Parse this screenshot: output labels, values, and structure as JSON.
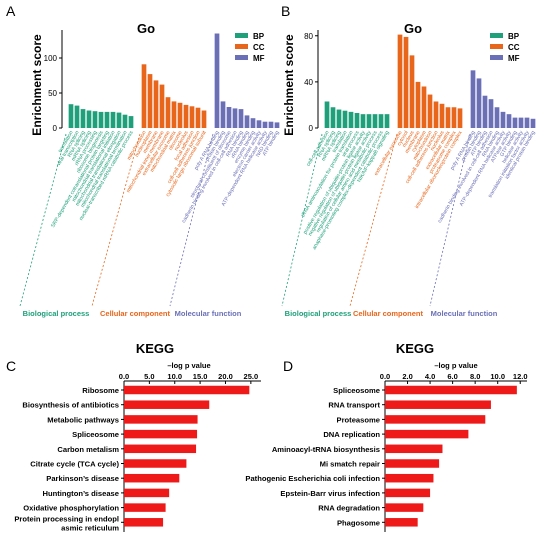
{
  "colors": {
    "BP": "#1fa07a",
    "CC": "#e8661c",
    "MF": "#6b70b6",
    "KEGG": "#ee1a1a"
  },
  "chart_data": [
    {
      "panel": "A",
      "type": "bar",
      "title": "Go",
      "ylabel": "Enrichment score",
      "ylim": [
        0,
        140
      ],
      "yticks": [
        0,
        50,
        100
      ],
      "legend": [
        "BP",
        "CC",
        "MF"
      ],
      "legend_position": "top-right",
      "groups": [
        {
          "name": "Biological process",
          "key": "BP",
          "categories": [
            "translation",
            "viral transcription",
            "RNA splicing",
            "mRNA splicing",
            "rRNA processing",
            "ribosome biogenesis",
            "SRP-dependent cotranslational protein targeting",
            "mitochondrial translational initiation",
            "mitochondrial translational elongation",
            "mitochondrial translational termination",
            "nuclear-transcribed mRNA catabolic process"
          ],
          "values": [
            34,
            32,
            27,
            25,
            24,
            23,
            23,
            23,
            22,
            19,
            17
          ]
        },
        {
          "name": "Cellular component",
          "key": "CC",
          "categories": [
            "mitochondrion",
            "nucleoplasm",
            "membrane",
            "mitochondrial inner membrane",
            "extracellular exosome",
            "mitochondrial matrix",
            "ribosome",
            "nucleolus",
            "focal adhesion",
            "cell-cell adherens junction",
            "cytosolic large ribosomal subunit"
          ],
          "values": [
            91,
            77,
            68,
            62,
            44,
            38,
            36,
            33,
            31,
            29,
            25
          ]
        },
        {
          "name": "Molecular function",
          "key": "MF",
          "categories": [
            "poly A RNA binding",
            "protein binding",
            "structural constituent of ribosome",
            "cadherin binding involved in cell-cell adhesion",
            "RNA binding",
            "rRNA binding",
            "enzyme binding",
            "electron carrier activity",
            "ATP-dependent RNA helicase activity",
            "NAD binding",
            "ATP binding"
          ],
          "values": [
            135,
            38,
            30,
            28,
            27,
            18,
            14,
            11,
            9,
            9,
            8
          ]
        }
      ]
    },
    {
      "panel": "B",
      "type": "bar",
      "title": "Go",
      "ylabel": "Enrichment score",
      "ylim": [
        0,
        85
      ],
      "yticks": [
        0,
        40,
        80
      ],
      "legend": [
        "BP",
        "CC",
        "MF"
      ],
      "legend_position": "top-right",
      "groups": [
        {
          "name": "Biological process",
          "key": "BP",
          "categories": [
            "cell-cell adhesion",
            "RNA splicing",
            "mRNA splicing",
            "translation",
            "tRNA aminoacylation for protein translation",
            "viral process",
            "positive regulation of ubiquitin-protein ligase activity",
            "negative regulation of ubiquitin-protein ligase activity",
            "regulation of cellular amino acid metabolic process",
            "anaphase-promoting complex-dependent catabolic process",
            "NIK/NF-kappaB signaling"
          ],
          "values": [
            23,
            18,
            16,
            15,
            14,
            13,
            12,
            12,
            12,
            12,
            12
          ]
        },
        {
          "name": "Cellular component",
          "key": "CC",
          "categories": [
            "extracellular exosome",
            "cytosol",
            "nucleus",
            "membrane",
            "cytoplasm",
            "mitochondrion",
            "cell-cell adherens junction",
            "nucleolus",
            "extracellular matrix",
            "proteasome complex",
            "intracellular ribonucleoprotein complex"
          ],
          "values": [
            81,
            79,
            63,
            40,
            36,
            29,
            23,
            21,
            18,
            18,
            17
          ]
        },
        {
          "name": "Molecular function",
          "key": "MF",
          "categories": [
            "poly A RNA binding",
            "protein binding",
            "ATP binding",
            "cadherin binding involved in cell-cell adhesion",
            "RNA binding",
            "ATP-dependent RNA helicase activity",
            "ATPase activity",
            "GTP binding",
            "helicase activity",
            "translation initiation factor activity",
            "identical protein binding"
          ],
          "values": [
            50,
            43,
            28,
            25,
            18,
            14,
            12,
            9,
            9,
            9,
            8
          ]
        }
      ]
    },
    {
      "panel": "C",
      "type": "bar",
      "orientation": "horizontal",
      "title": "KEGG",
      "xlabel": "–log p value",
      "xlim": [
        0,
        27
      ],
      "xticks": [
        0.0,
        5.0,
        10.0,
        15.0,
        20.0,
        25.0
      ],
      "xtick_labels": [
        "0.0",
        "5.0",
        "10.0",
        "15.0",
        "20.0",
        "25.0"
      ],
      "categories": [
        "Ribosome",
        "Biosynthesis of antibiotics",
        "Metabolic pathways",
        "Spliceosome",
        "Carbon metalism",
        "Citrate cycle (TCA cycle)",
        "Parkinson’s disease",
        "Huntington’s disease",
        "Oxidative phosphorylation",
        "Protein processing in endopl asmic reticulum"
      ],
      "values": [
        24.7,
        16.8,
        14.5,
        14.4,
        14.2,
        12.3,
        10.9,
        8.9,
        8.2,
        7.7
      ]
    },
    {
      "panel": "D",
      "type": "bar",
      "orientation": "horizontal",
      "title": "KEGG",
      "xlabel": "–log p value",
      "xlim": [
        0,
        12.6
      ],
      "xticks": [
        0.0,
        2.0,
        4.0,
        6.0,
        8.0,
        10.0,
        12.0
      ],
      "xtick_labels": [
        "0.0",
        "2.0",
        "4.0",
        "6.0",
        "8.0",
        "10.0",
        "12.0"
      ],
      "categories": [
        "Spliceosome",
        "RNA transport",
        "Proteasome",
        "DNA replication",
        "Aminoacyl-tRNA biosynthesis",
        "Mi smatch repair",
        "Pathogenic Escherichia coli infection",
        "Epstein-Barr virus infection",
        "RNA degradation",
        "Phagosome"
      ],
      "values": [
        11.7,
        9.4,
        8.9,
        7.4,
        5.1,
        4.8,
        4.3,
        4.0,
        3.4,
        2.9
      ]
    }
  ]
}
